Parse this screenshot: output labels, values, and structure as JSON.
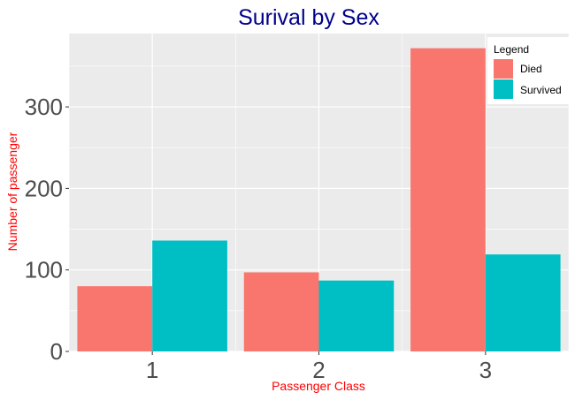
{
  "chart_data": {
    "type": "bar",
    "title": "Surival by Sex",
    "xlabel": "Passenger Class",
    "ylabel": "Number of passenger",
    "categories": [
      "1",
      "2",
      "3"
    ],
    "series": [
      {
        "name": "Died",
        "values": [
          80,
          97,
          372
        ]
      },
      {
        "name": "Survived",
        "values": [
          136,
          87,
          119
        ]
      }
    ],
    "ylim": [
      0,
      390
    ],
    "y_ticks": [
      0,
      100,
      200,
      300
    ],
    "y_tick_labels": [
      "0",
      "100",
      "200",
      "300"
    ],
    "grid": true,
    "legend": {
      "title": "Legend",
      "placement": "top-right",
      "items": [
        "Died",
        "Survived"
      ]
    },
    "colors": {
      "Died": "#F8766D",
      "Survived": "#00BFC4",
      "panel_bg": "#EBEBEB",
      "grid": "#FFFFFF",
      "title": "#00008B",
      "axis_label": "#FF0000",
      "tick_label": "#4D4D4D"
    }
  }
}
